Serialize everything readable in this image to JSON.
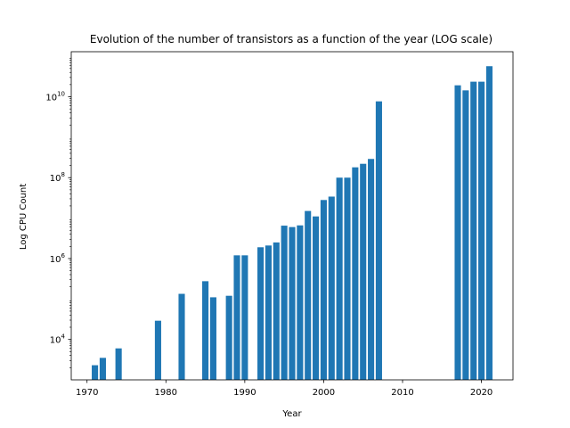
{
  "chart_data": {
    "type": "bar",
    "title": "Evolution of the number of transistors as a function of the year (LOG scale)",
    "xlabel": "Year",
    "ylabel": "Log CPU Count",
    "yscale": "log",
    "xlim": [
      1968,
      2024
    ],
    "ylim": [
      1000,
      130000000000
    ],
    "xticks": [
      1970,
      1980,
      1990,
      2000,
      2010,
      2020
    ],
    "yticks": [
      {
        "value": 10000,
        "base": "10",
        "exp": "4"
      },
      {
        "value": 1000000,
        "base": "10",
        "exp": "6"
      },
      {
        "value": 100000000,
        "base": "10",
        "exp": "8"
      },
      {
        "value": 10000000000,
        "base": "10",
        "exp": "10"
      }
    ],
    "bar_color": "#1f77b4",
    "grid": false,
    "x": [
      1971,
      1972,
      1974,
      1979,
      1982,
      1985,
      1986,
      1988,
      1989,
      1990,
      1992,
      1993,
      1994,
      1995,
      1996,
      1997,
      1998,
      1999,
      2000,
      2001,
      2002,
      2003,
      2004,
      2005,
      2006,
      2007,
      2017,
      2018,
      2019,
      2020,
      2021
    ],
    "values": [
      2300,
      3500,
      6000,
      29000,
      134000,
      275000,
      110000,
      120000,
      1200000,
      1200000,
      1900000,
      2100000,
      2500000,
      6500000,
      6000000,
      6600000,
      15000000,
      11000000,
      28000000,
      34000000,
      100000000,
      100000000,
      180000000,
      220000000,
      290000000,
      7700000000,
      19200000000,
      14400000000,
      23600000000,
      23600000000,
      57000000000
    ]
  }
}
